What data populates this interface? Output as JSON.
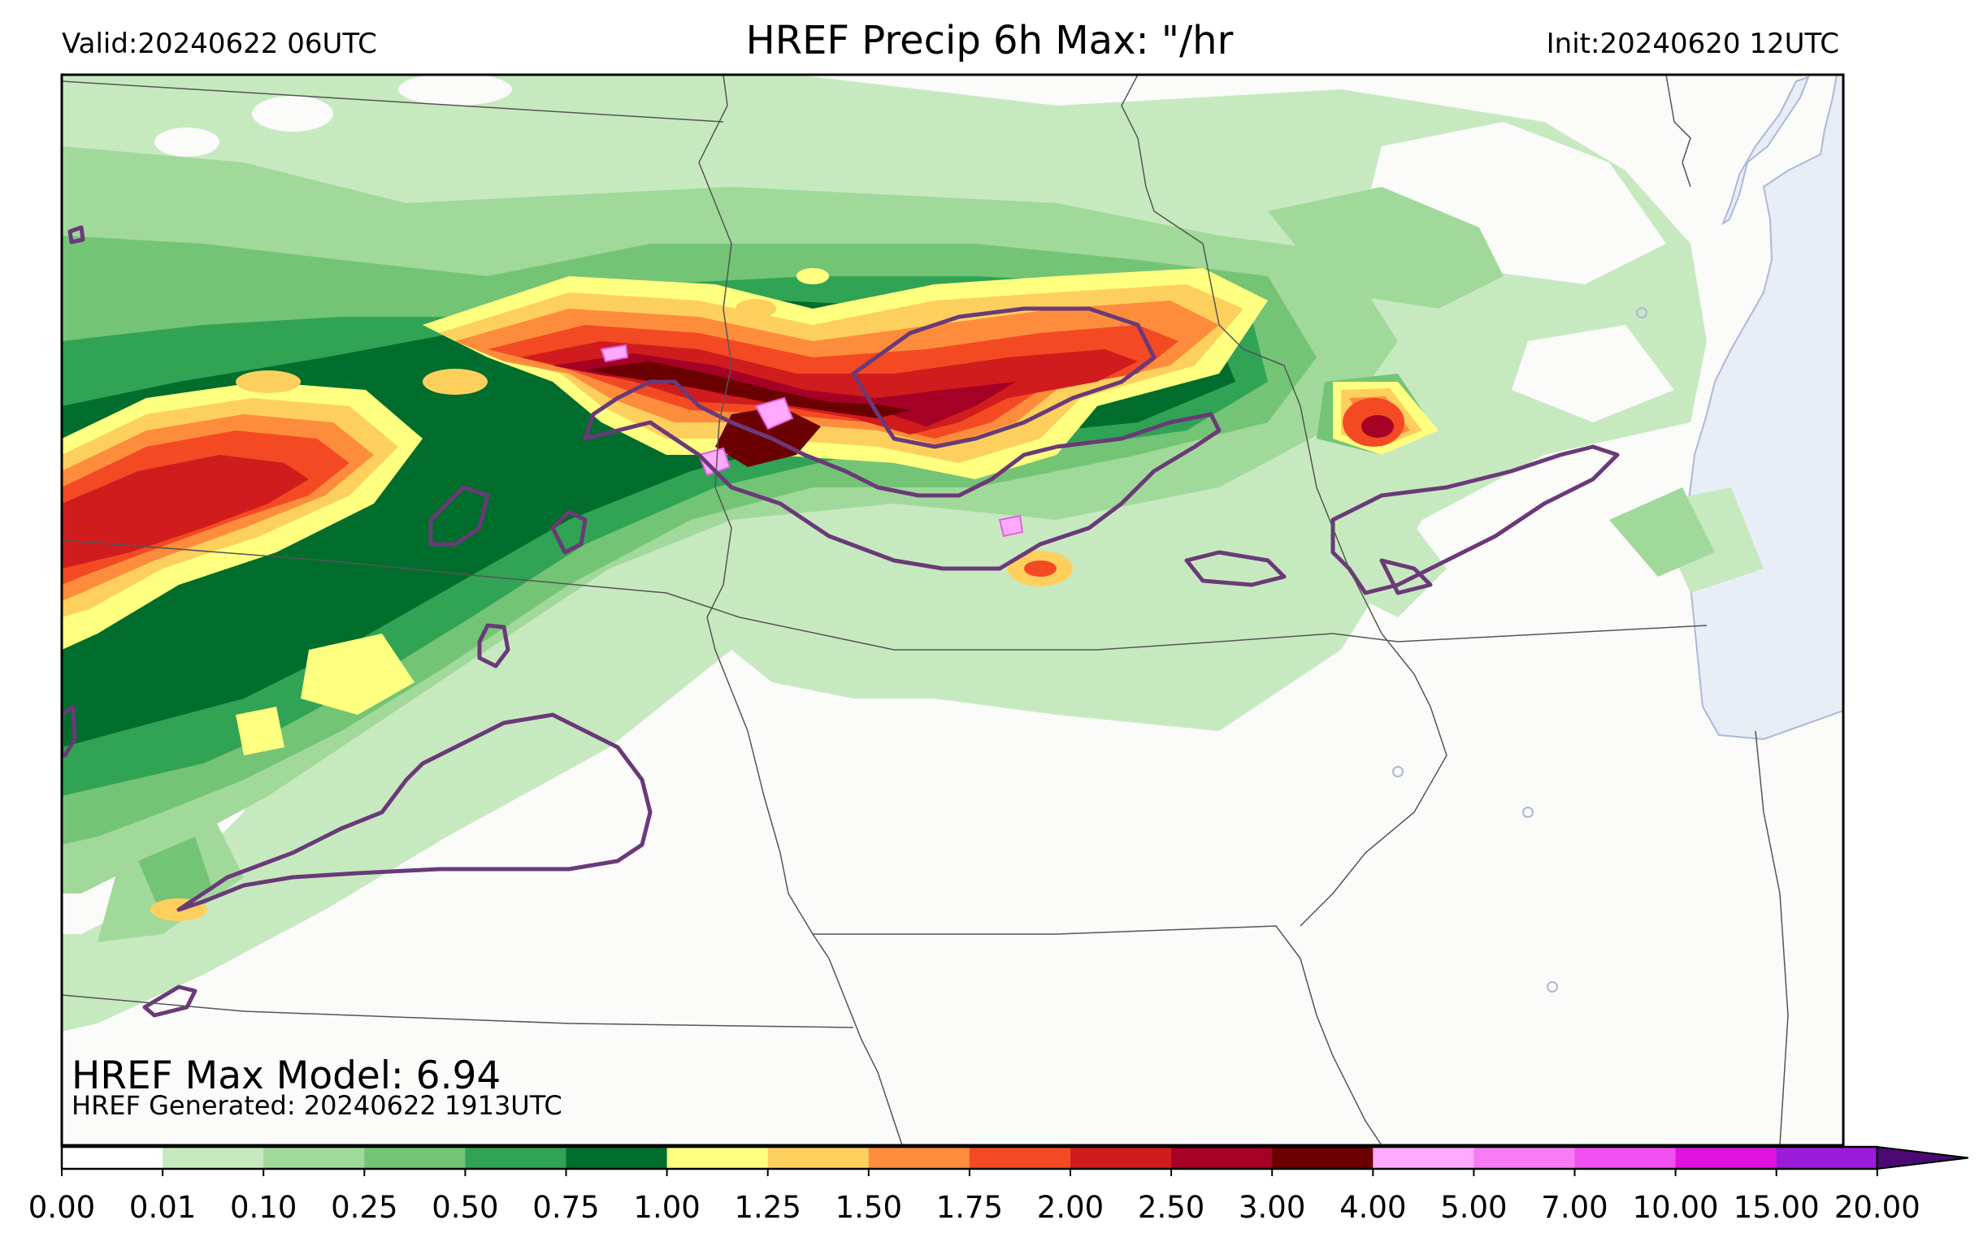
{
  "header": {
    "valid": "Valid:20240622 06UTC",
    "title": "HREF Precip 6h Max: \"/hr",
    "init": "Init:20240620 12UTC"
  },
  "annotations": {
    "max_model": "HREF Max Model: 6.94",
    "generated": "HREF Generated: 20240622 1913UTC"
  },
  "colors": {
    "water": "#e8eef6",
    "land": "#fbfbfa",
    "contour": "#6a3a78",
    "border": "#333333"
  },
  "colorbar": {
    "levels": [
      "0.00",
      "0.01",
      "0.10",
      "0.25",
      "0.50",
      "0.75",
      "1.00",
      "1.25",
      "1.50",
      "1.75",
      "2.00",
      "2.50",
      "3.00",
      "4.00",
      "5.00",
      "7.00",
      "10.00",
      "15.00",
      "20.00"
    ],
    "colors": [
      "#ffffff",
      "#c7e9c0",
      "#a1d99b",
      "#74c476",
      "#31a354",
      "#006d2c",
      "#ffff80",
      "#fdd05e",
      "#fd8d3c",
      "#f34a24",
      "#d01c1c",
      "#a50026",
      "#6b0000",
      "#ffaaff",
      "#f77cf3",
      "#f24ff0",
      "#e012e0",
      "#9b1cd8"
    ],
    "extend_color": "#4b0a73"
  }
}
